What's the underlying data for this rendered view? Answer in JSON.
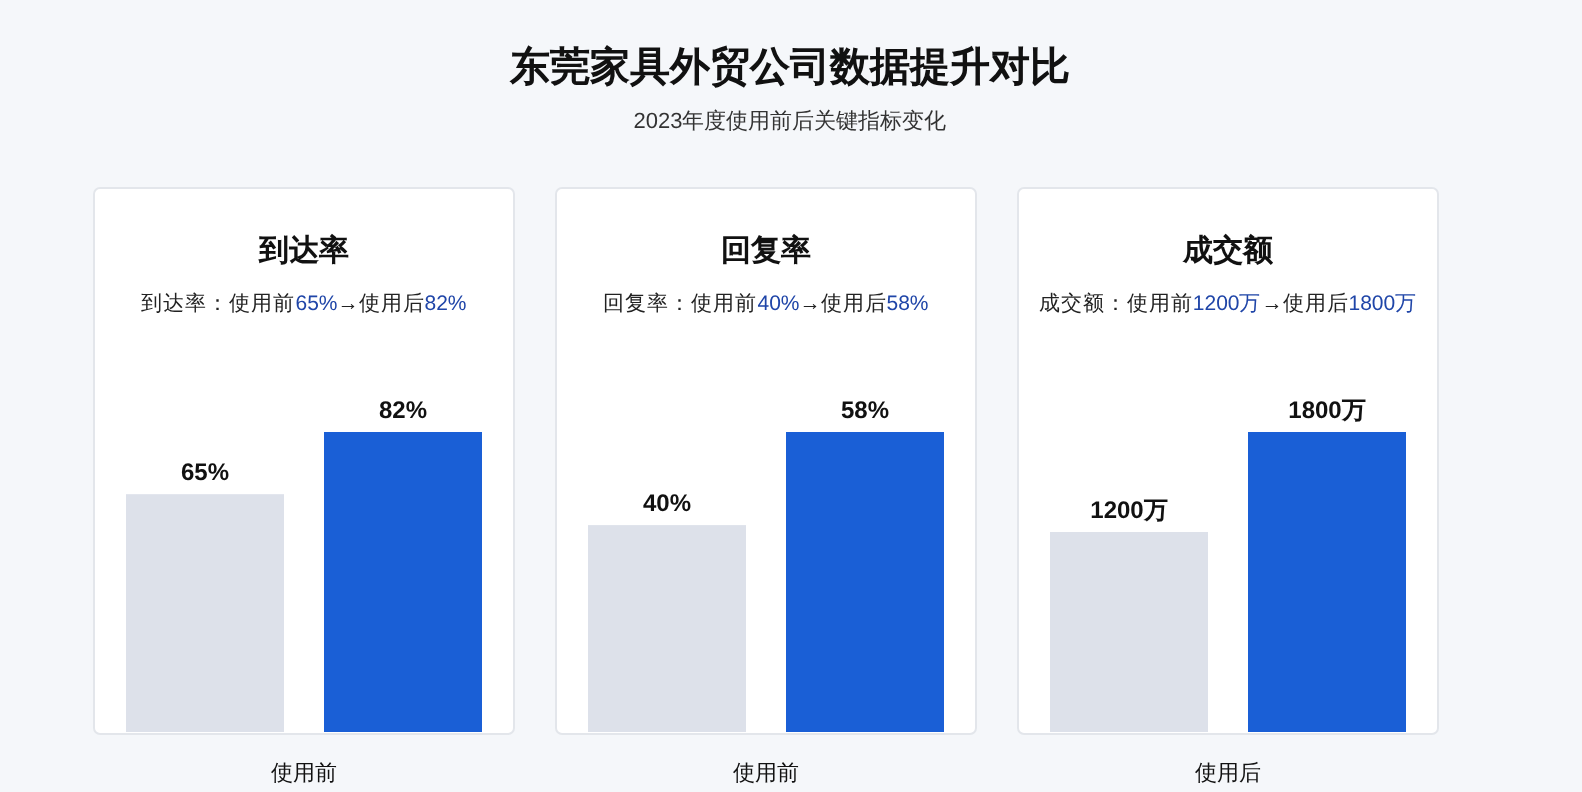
{
  "chart_data": [
    {
      "type": "other",
      "title": "东莞家具外贸公司数据提升对比",
      "subtitle": "2023年度使用前后关键指标变化"
    },
    {
      "type": "bar",
      "title": "到达率",
      "subtitle": "到达率：使用前65%→使用后82%",
      "categories": [
        null,
        null
      ],
      "values": [
        65,
        82
      ],
      "value_labels": [
        "65%",
        "82%"
      ],
      "colors": [
        "#dde1ea",
        "#1a5fd6"
      ],
      "xlabel": "使用前"
    },
    {
      "type": "bar",
      "title": "回复率",
      "subtitle": "回复率：使用前40%→使用后58%",
      "categories": [
        null,
        null
      ],
      "values": [
        40,
        58
      ],
      "value_labels": [
        "40%",
        "58%"
      ],
      "colors": [
        "#dde1ea",
        "#1a5fd6"
      ],
      "xlabel": "使用前"
    },
    {
      "type": "bar",
      "title": "成交额",
      "subtitle": "成交额：使用前1200万→使用后1800万",
      "categories": [
        null,
        null
      ],
      "values": [
        1200,
        1800
      ],
      "value_labels": [
        "1200万",
        "1800万"
      ],
      "colors": [
        "#dde1ea",
        "#1a5fd6"
      ],
      "xlabel": "使用后"
    }
  ]
}
